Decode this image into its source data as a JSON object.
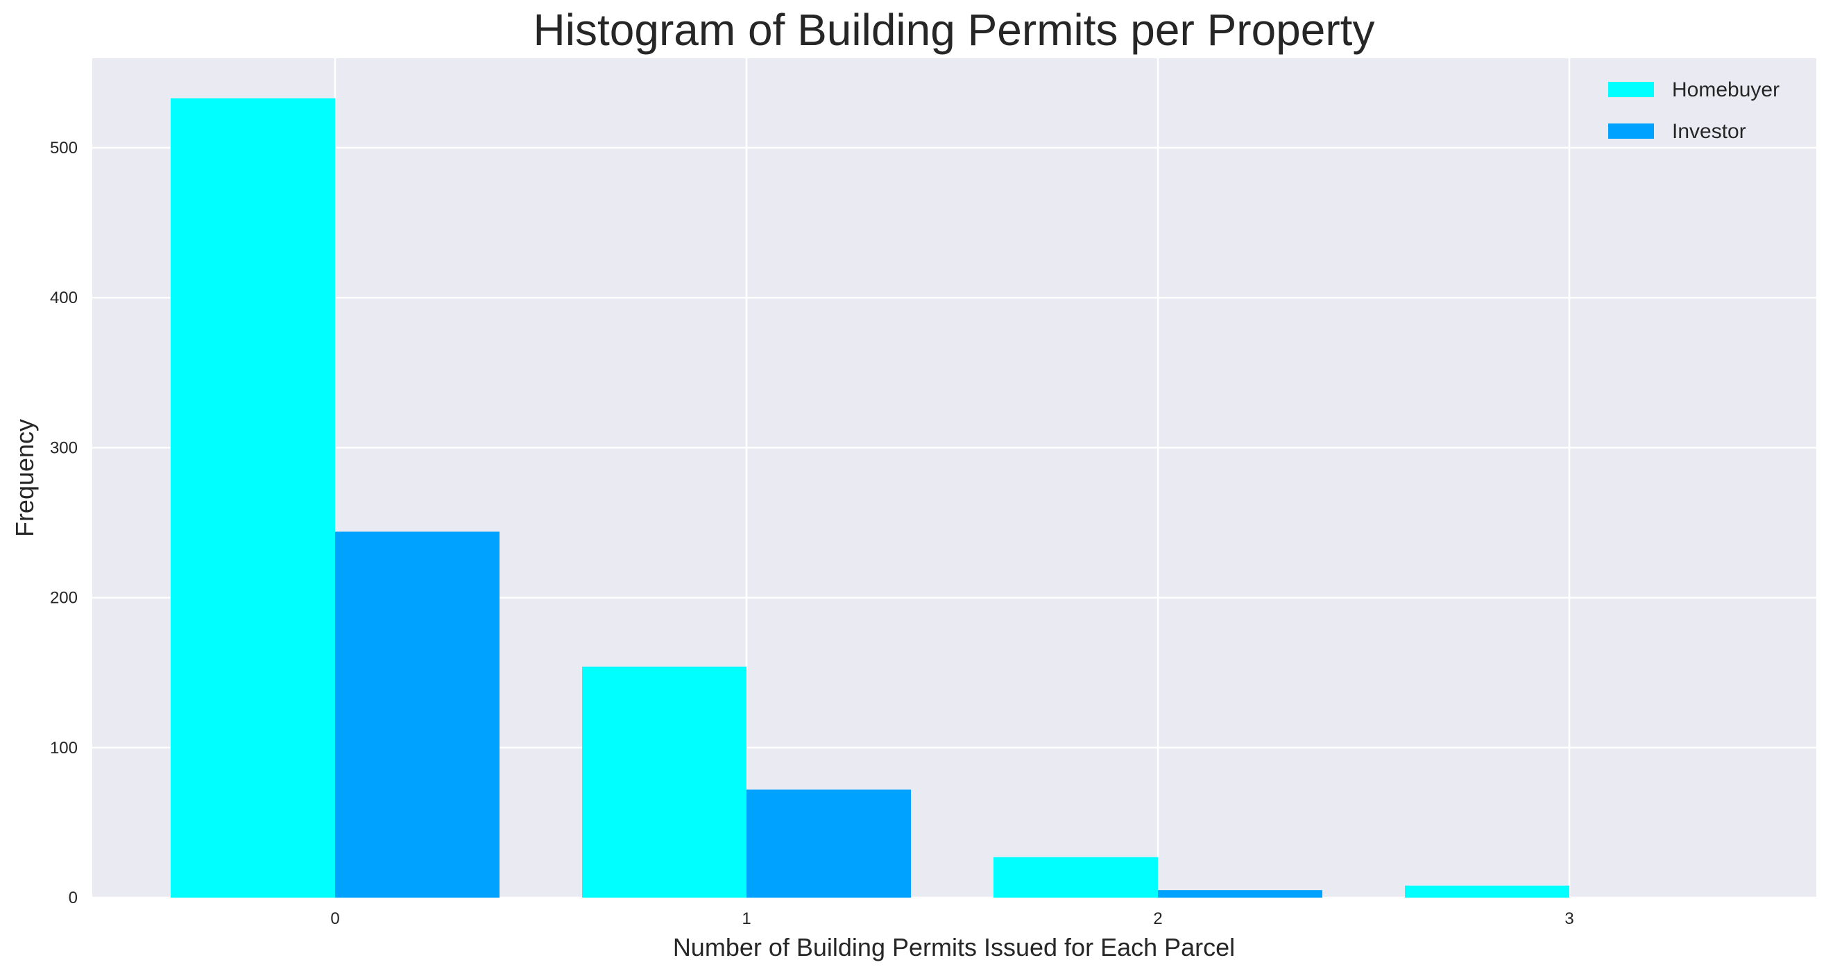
{
  "chart_data": {
    "type": "bar",
    "title": "Histogram of Building Permits per Property",
    "xlabel": "Number of Building Permits Issued for Each Parcel",
    "ylabel": "Frequency",
    "categories": [
      "0",
      "1",
      "2",
      "3"
    ],
    "series": [
      {
        "name": "Homebuyer",
        "color": "#00ffff",
        "values": [
          533,
          154,
          27,
          8
        ]
      },
      {
        "name": "Investor",
        "color": "#00a2ff",
        "values": [
          244,
          72,
          5,
          0
        ]
      }
    ],
    "ylim": [
      0,
      560
    ],
    "yticks": [
      0,
      100,
      200,
      300,
      400,
      500
    ],
    "grid": true,
    "background": "#eaeaf2",
    "legend_position": "top-right"
  }
}
